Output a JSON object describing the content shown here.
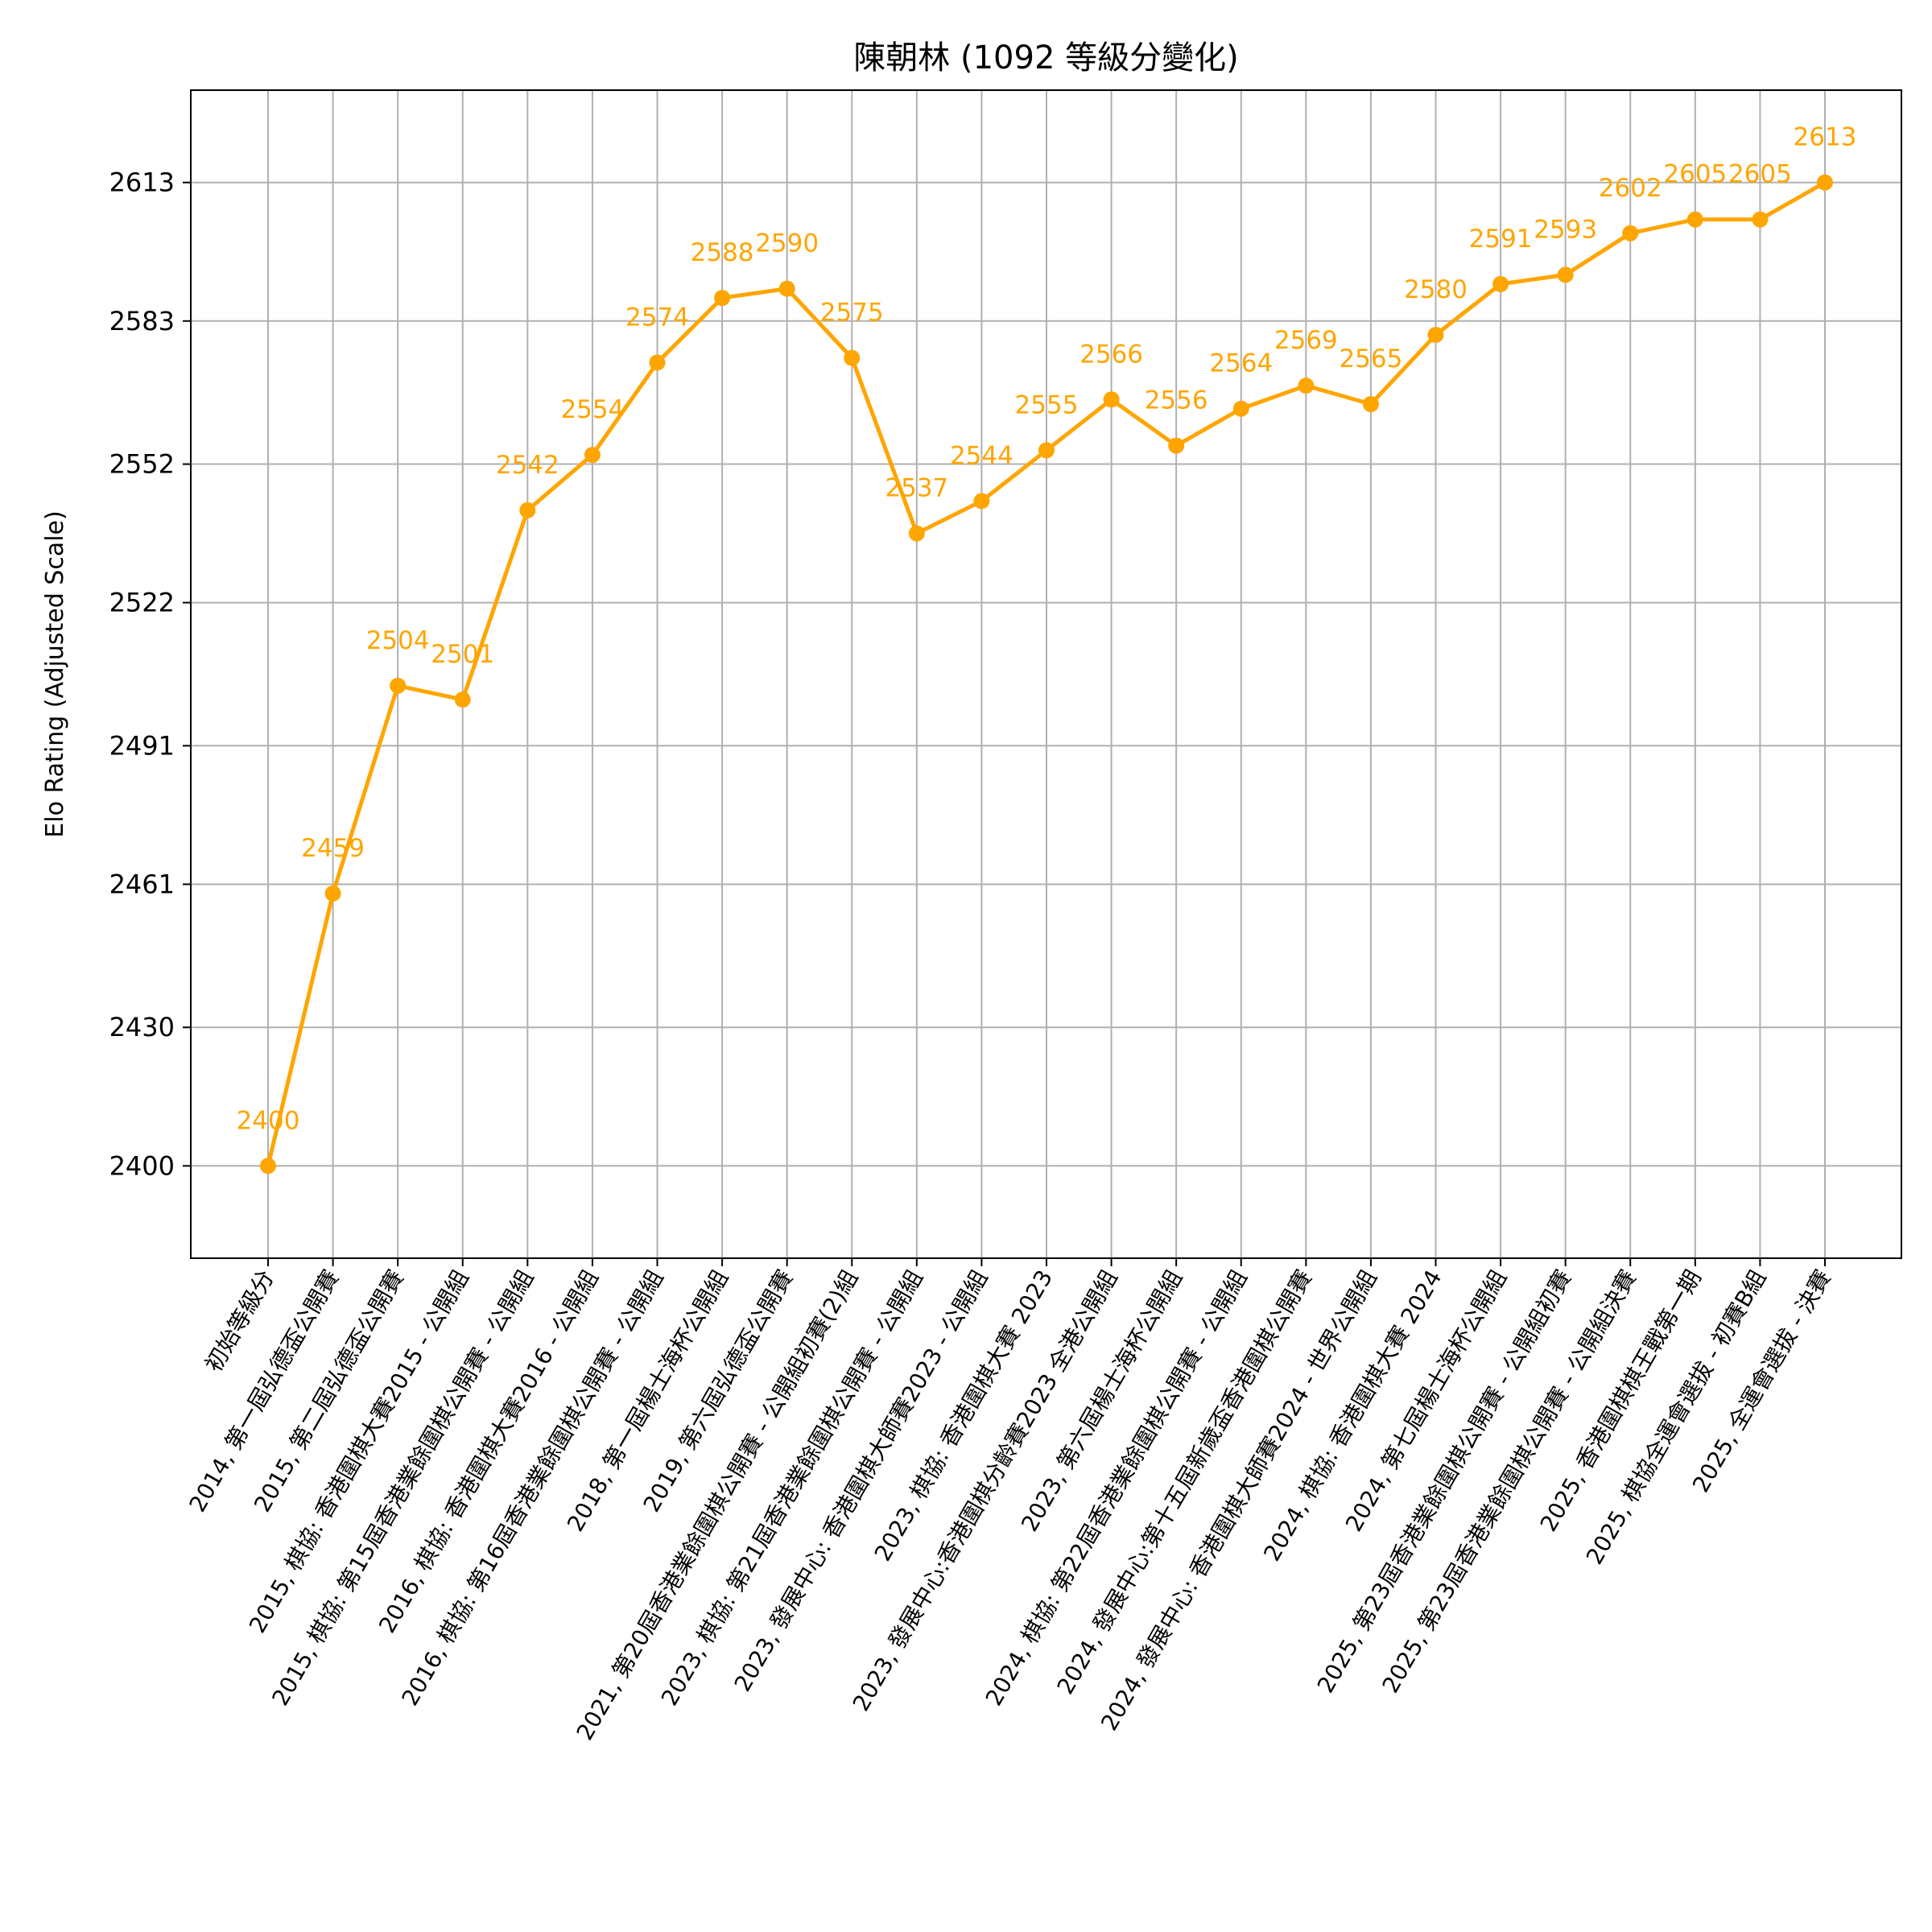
{
  "chart_data": {
    "type": "line",
    "title": "陳朝林 (1092 等級分變化)",
    "xlabel": "",
    "ylabel": "Elo Rating (Adjusted Scale)",
    "color": "#FFA500",
    "grid": true,
    "ylim": [
      2380,
      2633
    ],
    "yticks": [
      2400,
      2430,
      2461,
      2491,
      2522,
      2552,
      2583,
      2613
    ],
    "categories": [
      "初始等級分",
      "2014, 第一屆弘德盃公開賽",
      "2015, 第二屆弘德盃公開賽",
      "2015, 棋協: 香港圍棋大賽2015 - 公開組",
      "2015, 棋協: 第15屆香港業餘圍棋公開賽 - 公開組",
      "2016, 棋協: 香港圍棋大賽2016 - 公開組",
      "2016, 棋協: 第16屆香港業餘圍棋公開賽 - 公開組",
      "2018, 第一屆楊士海杯公開組",
      "2019, 第六屆弘德盃公開賽",
      "2021, 第20屆香港業餘圍棋公開賽 - 公開組初賽(2)組",
      "2023, 棋協: 第21屆香港業餘圍棋公開賽 - 公開組",
      "2023, 發展中心: 香港圍棋大師賽2023 - 公開組",
      "2023, 棋協: 香港圍棋大賽 2023",
      "2023, 發展中心:香港圍棋分齡賽2023 全港公開組",
      "2023, 第六屆楊士海杯公開組",
      "2024, 棋協: 第22屆香港業餘圍棋公開賽 - 公開組",
      "2024, 發展中心:第十五屆新歲盃香港圍棋公開賽",
      "2024, 發展中心: 香港圍棋大師賽2024 - 世界公開組",
      "2024, 棋協: 香港圍棋大賽 2024",
      "2024, 第七屆楊士海杯公開組",
      "2025, 第23屆香港業餘圍棋公開賽 - 公開組初賽",
      "2025, 第23屆香港業餘圍棋公開賽 - 公開組決賽",
      "2025, 香港圍棋棋王戰第一期",
      "2025, 棋協全運會選拔 - 初賽B組",
      "2025, 全運會選拔 - 決賽"
    ],
    "values": [
      2400,
      2459,
      2504,
      2501,
      2542,
      2554,
      2574,
      2588,
      2590,
      2575,
      2537,
      2544,
      2555,
      2566,
      2556,
      2564,
      2569,
      2565,
      2580,
      2591,
      2593,
      2602,
      2605,
      2605,
      2613
    ],
    "labels": [
      "2400",
      "2459",
      "2504",
      "2501",
      "2542",
      "2554",
      "2574",
      "2588",
      "2590",
      "2575",
      "2537",
      "2544",
      "2555",
      "2566",
      "2556",
      "2564",
      "2569",
      "2565",
      "2580",
      "2591",
      "2593",
      "2602",
      "2605",
      "2605",
      "2613"
    ]
  }
}
